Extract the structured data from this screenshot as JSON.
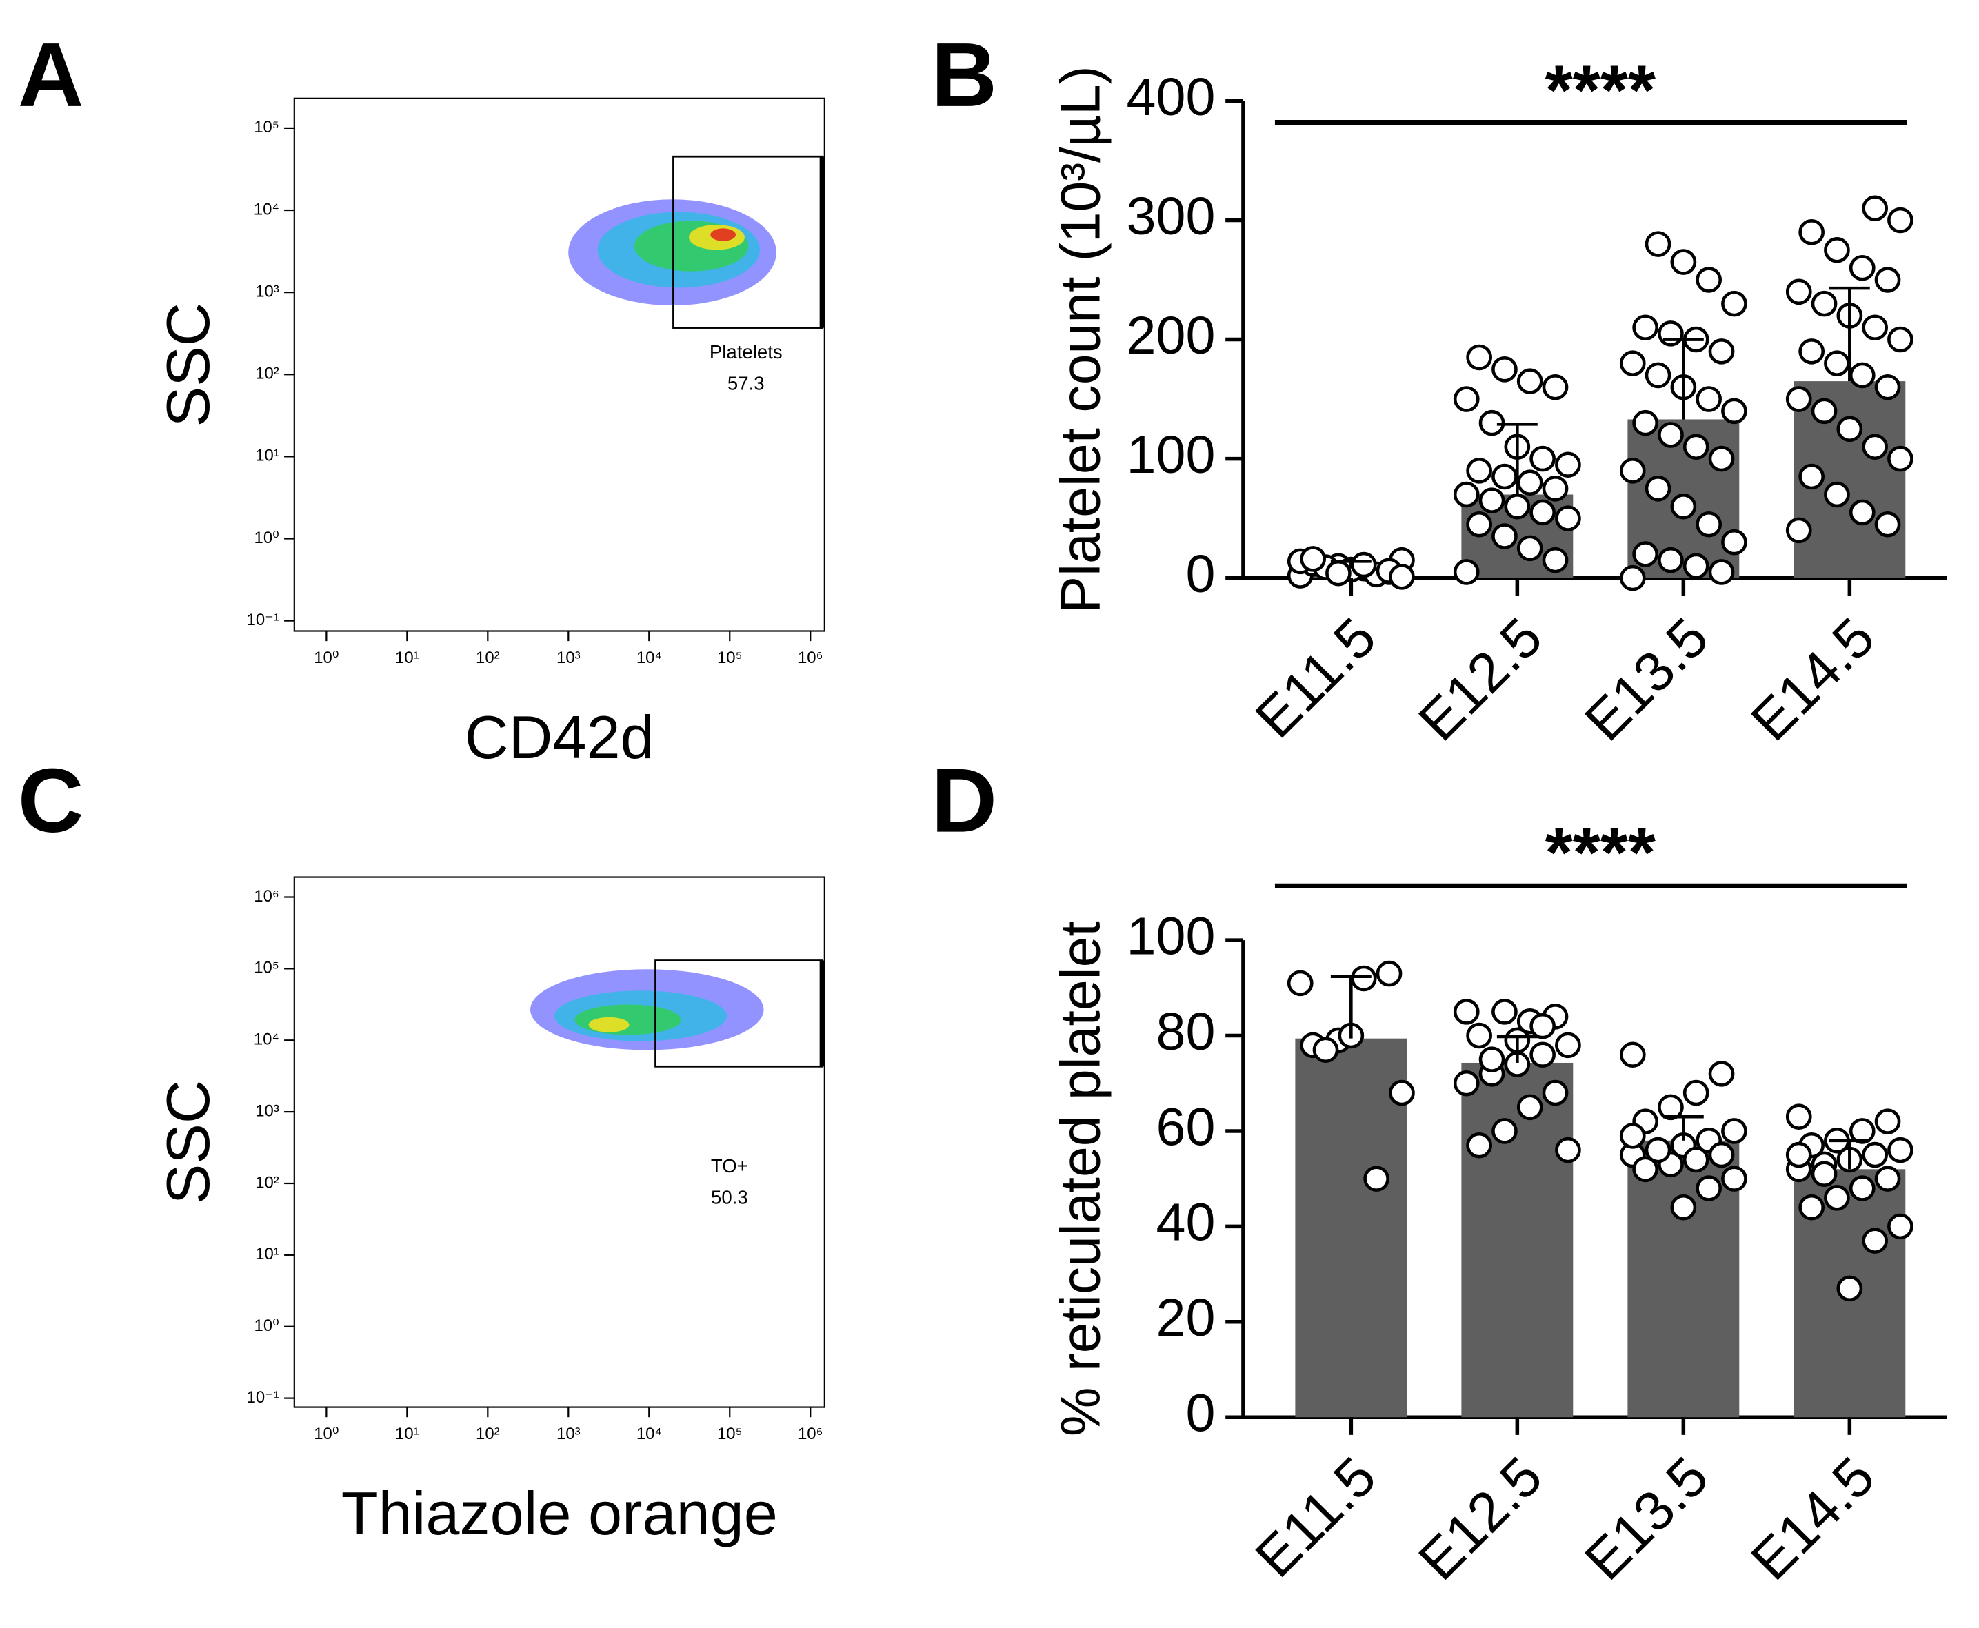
{
  "chart_data": [
    {
      "type": "flow",
      "panel": "A",
      "xlabel": "CD42d",
      "ylabel": "SSC",
      "log": true,
      "xlim": [
        0.4,
        1500000
      ],
      "ylim": [
        0.075,
        230000
      ],
      "xticks": [
        {
          "value": 1,
          "label": "10⁰"
        },
        {
          "value": 10,
          "label": "10¹"
        },
        {
          "value": 100,
          "label": "10²"
        },
        {
          "value": 1000,
          "label": "10³"
        },
        {
          "value": 10000,
          "label": "10⁴"
        },
        {
          "value": 100000,
          "label": "10⁵"
        },
        {
          "value": 1000000,
          "label": "10⁶"
        }
      ],
      "yticks": [
        {
          "value": 0.1,
          "label": "10⁻¹"
        },
        {
          "value": 1,
          "label": "10⁰"
        },
        {
          "value": 10,
          "label": "10¹"
        },
        {
          "value": 100,
          "label": "10²"
        },
        {
          "value": 1000,
          "label": "10³"
        },
        {
          "value": 10000,
          "label": "10⁴"
        },
        {
          "value": 100000,
          "label": "10⁵"
        }
      ],
      "gate": {
        "name": "Platelets",
        "value": 57.3,
        "x": [
          20000,
          1400000
        ],
        "y": [
          370,
          45000
        ]
      }
    },
    {
      "type": "bar",
      "panel": "B",
      "ylabel": "Platelet count (10³/µL)",
      "significance": "****",
      "categories": [
        "E11.5",
        "E12.5",
        "E13.5",
        "E14.5"
      ],
      "color": "#5f5f5f",
      "values": [
        8,
        70,
        133,
        165
      ],
      "errors": [
        6,
        59,
        67,
        78
      ],
      "points": [
        [
          2,
          5,
          8,
          10,
          12,
          15,
          3,
          7,
          9,
          14,
          6,
          11,
          4,
          16,
          1
        ],
        [
          5,
          15,
          25,
          35,
          45,
          50,
          55,
          60,
          65,
          70,
          75,
          80,
          85,
          90,
          95,
          100,
          110,
          130,
          150,
          160,
          165,
          175,
          185
        ],
        [
          0,
          5,
          10,
          15,
          20,
          30,
          45,
          60,
          75,
          90,
          100,
          110,
          120,
          130,
          140,
          150,
          160,
          170,
          180,
          190,
          200,
          205,
          210,
          230,
          250,
          265,
          280
        ],
        [
          40,
          45,
          55,
          70,
          85,
          100,
          110,
          125,
          140,
          150,
          160,
          170,
          180,
          190,
          200,
          210,
          220,
          230,
          240,
          250,
          260,
          275,
          290,
          300,
          310
        ]
      ],
      "ylim": [
        0,
        400
      ],
      "yticks": [
        0,
        100,
        200,
        300,
        400
      ]
    },
    {
      "type": "flow",
      "panel": "C",
      "xlabel": "Thiazole orange",
      "ylabel": "SSC",
      "log": true,
      "xlim": [
        0.4,
        1500000
      ],
      "ylim": [
        0.075,
        1900000
      ],
      "xticks": [
        {
          "value": 1,
          "label": "10⁰"
        },
        {
          "value": 10,
          "label": "10¹"
        },
        {
          "value": 100,
          "label": "10²"
        },
        {
          "value": 1000,
          "label": "10³"
        },
        {
          "value": 10000,
          "label": "10⁴"
        },
        {
          "value": 100000,
          "label": "10⁵"
        },
        {
          "value": 1000000,
          "label": "10⁶"
        }
      ],
      "yticks": [
        {
          "value": 0.1,
          "label": "10⁻¹"
        },
        {
          "value": 1,
          "label": "10⁰"
        },
        {
          "value": 10,
          "label": "10¹"
        },
        {
          "value": 100,
          "label": "10²"
        },
        {
          "value": 1000,
          "label": "10³"
        },
        {
          "value": 10000,
          "label": "10⁴"
        },
        {
          "value": 100000,
          "label": "10⁵"
        },
        {
          "value": 1000000,
          "label": "10⁶"
        }
      ],
      "gate": {
        "name": "TO+",
        "value": 50.3,
        "x": [
          12000,
          1400000
        ],
        "y": [
          4300,
          130000
        ]
      }
    },
    {
      "type": "bar",
      "panel": "D",
      "ylabel": "% reticulated platelet",
      "significance": "****",
      "categories": [
        "E11.5",
        "E12.5",
        "E13.5",
        "E14.5"
      ],
      "color": "#5f5f5f",
      "values": [
        79.4,
        74.3,
        58,
        52
      ],
      "errors": [
        13,
        5.5,
        5,
        6
      ],
      "points": [
        [
          91,
          93,
          92,
          79,
          78,
          68,
          50,
          80,
          77
        ],
        [
          85,
          84,
          83,
          85,
          80,
          78,
          76,
          74,
          72,
          70,
          68,
          65,
          60,
          57,
          56,
          82,
          79,
          75
        ],
        [
          76,
          72,
          68,
          65,
          62,
          60,
          58,
          57,
          56,
          55,
          55,
          54,
          53,
          52,
          50,
          48,
          44,
          56,
          59
        ],
        [
          63,
          62,
          60,
          58,
          57,
          56,
          55,
          54,
          53,
          52,
          50,
          48,
          46,
          44,
          40,
          37,
          27,
          51,
          55
        ]
      ],
      "ylim": [
        0,
        100
      ],
      "yticks": [
        0,
        20,
        40,
        60,
        80,
        100
      ]
    }
  ]
}
